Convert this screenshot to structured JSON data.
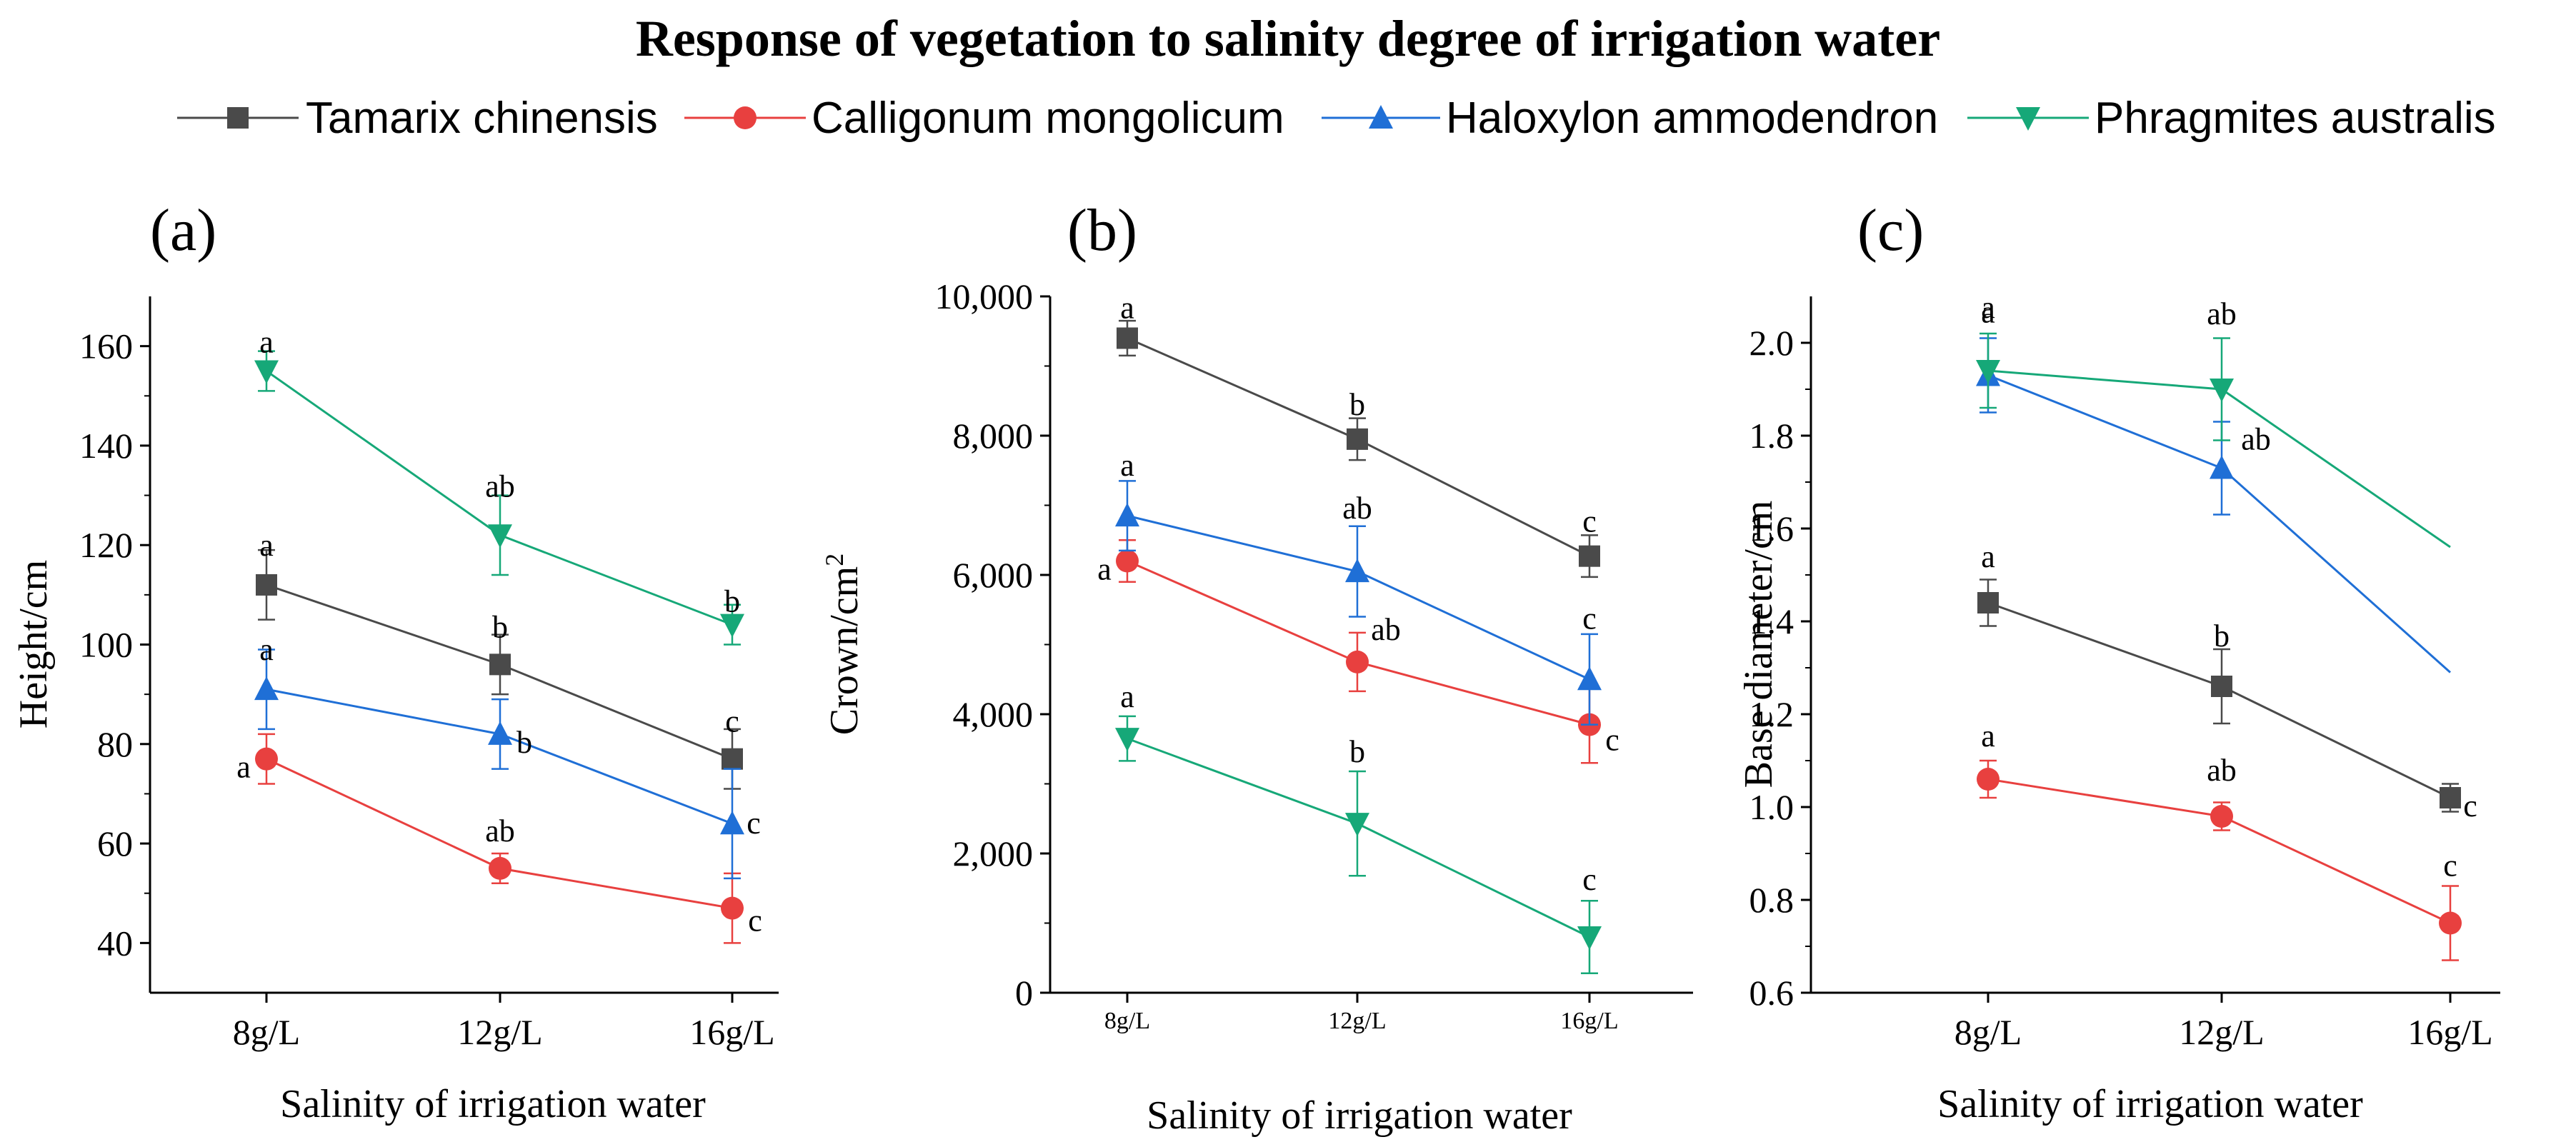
{
  "figure": {
    "title": "Response of vegetation to salinity degree of irrigation water",
    "legend": [
      {
        "name": "Tamarix chinensis",
        "color": "#4a4a4a",
        "marker": "square"
      },
      {
        "name": "Calligonum mongolicum",
        "color": "#e8403f",
        "marker": "circle"
      },
      {
        "name": "Haloxylon ammodendron",
        "color": "#1f6fd6",
        "marker": "triangle-up"
      },
      {
        "name": "Phragmites australis",
        "color": "#16a878",
        "marker": "triangle-down"
      }
    ]
  },
  "chart_data": [
    {
      "type": "line",
      "panel": "(a)",
      "categories": [
        "8g/L",
        "12g/L",
        "16g/L"
      ],
      "xlabel": "Salinity of irrigation water",
      "ylabel": "Height/cm",
      "ylim": [
        30,
        170
      ],
      "yticks": [
        {
          "v": 40,
          "label": "40"
        },
        {
          "v": 60,
          "label": "60"
        },
        {
          "v": 80,
          "label": "80"
        },
        {
          "v": 100,
          "label": "100"
        },
        {
          "v": 120,
          "label": "120"
        },
        {
          "v": 140,
          "label": "140"
        },
        {
          "v": 160,
          "label": "160"
        }
      ],
      "series": [
        {
          "name": "Tamarix chinensis",
          "values": [
            112,
            96,
            77
          ],
          "errors": [
            7,
            6,
            6
          ],
          "letters": [
            "a",
            "b",
            "c"
          ]
        },
        {
          "name": "Calligonum mongolicum",
          "values": [
            77,
            55,
            47
          ],
          "errors": [
            5,
            3,
            7
          ],
          "letters": [
            "a",
            "ab",
            "c"
          ]
        },
        {
          "name": "Haloxylon ammodendron",
          "values": [
            91,
            82,
            64
          ],
          "errors": [
            8,
            7,
            11
          ],
          "letters": [
            "a",
            "b",
            "c"
          ]
        },
        {
          "name": "Phragmites australis",
          "values": [
            155,
            122,
            104
          ],
          "errors": [
            4,
            8,
            4
          ],
          "letters": [
            "a",
            "ab",
            "b"
          ]
        }
      ]
    },
    {
      "type": "line",
      "panel": "(b)",
      "categories": [
        "8g/L",
        "12g/L",
        "16g/L"
      ],
      "xlabel": "Salinity of irrigation water",
      "ylabel": "Crown/cm",
      "ylabel_sup": "2",
      "ylim": [
        0,
        10000
      ],
      "yticks": [
        {
          "v": 0,
          "label": "0"
        },
        {
          "v": 2000,
          "label": "2,000"
        },
        {
          "v": 4000,
          "label": "4,000"
        },
        {
          "v": 6000,
          "label": "6,000"
        },
        {
          "v": 8000,
          "label": "8,000"
        },
        {
          "v": 10000,
          "label": "10,000"
        }
      ],
      "series": [
        {
          "name": "Tamarix chinensis",
          "values": [
            9400,
            7950,
            6270
          ],
          "errors": [
            250,
            300,
            300
          ],
          "letters": [
            "a",
            "b",
            "c"
          ]
        },
        {
          "name": "Calligonum mongolicum",
          "values": [
            6200,
            4750,
            3850
          ],
          "errors": [
            300,
            420,
            550
          ],
          "letters": [
            "a",
            "ab",
            "c"
          ]
        },
        {
          "name": "Haloxylon ammodendron",
          "values": [
            6850,
            6050,
            4500
          ],
          "errors": [
            500,
            650,
            650
          ],
          "letters": [
            "a",
            "ab",
            "c"
          ]
        },
        {
          "name": "Phragmites australis",
          "values": [
            3650,
            2430,
            800
          ],
          "errors": [
            320,
            750,
            520
          ],
          "letters": [
            "a",
            "b",
            "c"
          ]
        }
      ]
    },
    {
      "type": "line",
      "panel": "(c)",
      "categories": [
        "8g/L",
        "12g/L",
        "16g/L"
      ],
      "xlabel": "Salinity of irrigation water",
      "ylabel": "Base diameter/cm",
      "ylim": [
        0.6,
        2.1
      ],
      "yticks": [
        {
          "v": 0.6,
          "label": "0.6"
        },
        {
          "v": 0.8,
          "label": "0.8"
        },
        {
          "v": 1.0,
          "label": "1.0"
        },
        {
          "v": 1.2,
          "label": "1.2"
        },
        {
          "v": 1.4,
          "label": "1.4"
        },
        {
          "v": 1.6,
          "label": "1.6"
        },
        {
          "v": 1.8,
          "label": "1.8"
        },
        {
          "v": 2.0,
          "label": "2.0"
        }
      ],
      "series": [
        {
          "name": "Tamarix chinensis",
          "values": [
            1.44,
            1.26,
            1.02
          ],
          "errors": [
            0.05,
            0.08,
            0.03
          ],
          "letters": [
            "a",
            "b",
            "c"
          ]
        },
        {
          "name": "Calligonum mongolicum",
          "values": [
            1.06,
            0.98,
            0.75
          ],
          "errors": [
            0.04,
            0.03,
            0.08
          ],
          "letters": [
            "a",
            "ab",
            "c"
          ]
        },
        {
          "name": "Haloxylon ammodendron",
          "values": [
            1.93,
            1.73,
            1.29
          ],
          "errors": [
            0.08,
            0.1,
            null
          ],
          "letters": [
            "a",
            "ab",
            null
          ],
          "line_end_only": true
        },
        {
          "name": "Phragmites australis",
          "values": [
            1.94,
            1.9,
            1.56
          ],
          "errors": [
            0.08,
            0.11,
            null
          ],
          "letters": [
            "a",
            "ab",
            null
          ],
          "line_end_only": true
        }
      ]
    }
  ]
}
